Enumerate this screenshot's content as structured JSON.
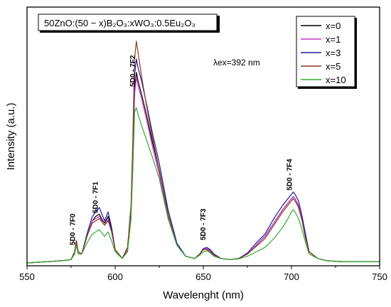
{
  "chart_data": {
    "type": "line",
    "title": "50ZnO:(50 − x)B₂O₃:xWO₃:0.5Eu₂O₃",
    "xlabel": "Wavelenght (nm)",
    "ylabel": "Intensity (a.u.)",
    "xlim": [
      550,
      750
    ],
    "ylim": [
      0,
      1
    ],
    "x_ticks": [
      "550",
      "600",
      "650",
      "700",
      "750"
    ],
    "y_ticks": [],
    "legend_position": "top-right",
    "annotations": {
      "excitation": "λex=392 nm",
      "peaks": [
        {
          "label": "5D0 - 7F0",
          "x": 578
        },
        {
          "label": "5D0 - 7F1",
          "x": 591
        },
        {
          "label": "5D0 - 7F2",
          "x": 612
        },
        {
          "label": "5D0 - 7F3",
          "x": 652
        },
        {
          "label": "5D0 - 7F4",
          "x": 701
        }
      ]
    },
    "x": [
      550,
      570,
      575,
      577,
      578,
      579,
      581,
      584,
      587,
      589,
      591,
      593,
      594,
      596,
      598,
      600,
      604,
      607,
      609,
      610,
      611,
      612,
      613,
      615,
      618,
      621,
      625,
      630,
      635,
      640,
      645,
      648,
      650,
      652,
      654,
      656,
      660,
      665,
      670,
      675,
      680,
      685,
      690,
      695,
      698,
      700,
      701,
      702,
      704,
      706,
      708,
      710,
      715,
      720,
      730,
      740,
      750
    ],
    "series": [
      {
        "name": "x=0",
        "color": "#000000",
        "values": [
          0.0,
          0.01,
          0.015,
          0.05,
          0.1,
          0.05,
          0.04,
          0.12,
          0.19,
          0.21,
          0.22,
          0.19,
          0.18,
          0.21,
          0.15,
          0.06,
          0.02,
          0.06,
          0.22,
          0.46,
          0.78,
          0.86,
          0.82,
          0.76,
          0.66,
          0.55,
          0.42,
          0.22,
          0.08,
          0.03,
          0.02,
          0.04,
          0.06,
          0.065,
          0.055,
          0.04,
          0.02,
          0.015,
          0.02,
          0.04,
          0.08,
          0.12,
          0.18,
          0.24,
          0.27,
          0.29,
          0.3,
          0.29,
          0.26,
          0.2,
          0.12,
          0.05,
          0.02,
          0.01,
          0.005,
          0.005,
          0.005
        ]
      },
      {
        "name": "x=1",
        "color": "#cc33cc",
        "values": [
          0.0,
          0.01,
          0.015,
          0.05,
          0.1,
          0.05,
          0.04,
          0.12,
          0.19,
          0.2,
          0.21,
          0.18,
          0.17,
          0.2,
          0.14,
          0.06,
          0.02,
          0.06,
          0.22,
          0.45,
          0.76,
          0.84,
          0.8,
          0.74,
          0.64,
          0.53,
          0.4,
          0.21,
          0.08,
          0.03,
          0.02,
          0.04,
          0.06,
          0.065,
          0.055,
          0.04,
          0.02,
          0.015,
          0.02,
          0.04,
          0.08,
          0.12,
          0.18,
          0.24,
          0.27,
          0.29,
          0.3,
          0.29,
          0.26,
          0.2,
          0.12,
          0.05,
          0.02,
          0.01,
          0.005,
          0.005,
          0.005
        ]
      },
      {
        "name": "x=3",
        "color": "#1a1aa6",
        "values": [
          0.0,
          0.01,
          0.015,
          0.05,
          0.1,
          0.05,
          0.04,
          0.13,
          0.21,
          0.23,
          0.25,
          0.21,
          0.19,
          0.23,
          0.16,
          0.06,
          0.02,
          0.07,
          0.24,
          0.5,
          0.85,
          0.92,
          0.88,
          0.82,
          0.71,
          0.59,
          0.45,
          0.24,
          0.09,
          0.03,
          0.02,
          0.04,
          0.065,
          0.07,
          0.06,
          0.04,
          0.02,
          0.015,
          0.02,
          0.045,
          0.09,
          0.13,
          0.2,
          0.26,
          0.29,
          0.31,
          0.32,
          0.31,
          0.28,
          0.21,
          0.13,
          0.05,
          0.02,
          0.01,
          0.005,
          0.005,
          0.005
        ]
      },
      {
        "name": "x=5",
        "color": "#8b3a1a",
        "values": [
          0.0,
          0.01,
          0.015,
          0.05,
          0.1,
          0.05,
          0.04,
          0.12,
          0.18,
          0.19,
          0.2,
          0.18,
          0.17,
          0.19,
          0.14,
          0.06,
          0.02,
          0.07,
          0.26,
          0.55,
          0.92,
          1.0,
          0.95,
          0.84,
          0.7,
          0.57,
          0.42,
          0.22,
          0.08,
          0.03,
          0.02,
          0.04,
          0.06,
          0.06,
          0.05,
          0.035,
          0.02,
          0.015,
          0.02,
          0.04,
          0.075,
          0.11,
          0.17,
          0.23,
          0.26,
          0.28,
          0.29,
          0.28,
          0.25,
          0.19,
          0.11,
          0.05,
          0.02,
          0.01,
          0.005,
          0.005,
          0.005
        ]
      },
      {
        "name": "x=10",
        "color": "#33aa33",
        "values": [
          0.0,
          0.01,
          0.015,
          0.04,
          0.08,
          0.04,
          0.04,
          0.09,
          0.13,
          0.14,
          0.15,
          0.13,
          0.12,
          0.14,
          0.1,
          0.05,
          0.02,
          0.05,
          0.2,
          0.42,
          0.68,
          0.7,
          0.67,
          0.62,
          0.55,
          0.48,
          0.38,
          0.2,
          0.08,
          0.03,
          0.02,
          0.035,
          0.05,
          0.055,
          0.045,
          0.03,
          0.02,
          0.015,
          0.018,
          0.03,
          0.05,
          0.07,
          0.11,
          0.16,
          0.2,
          0.23,
          0.24,
          0.23,
          0.2,
          0.15,
          0.09,
          0.04,
          0.02,
          0.01,
          0.005,
          0.005,
          0.005
        ]
      }
    ]
  }
}
